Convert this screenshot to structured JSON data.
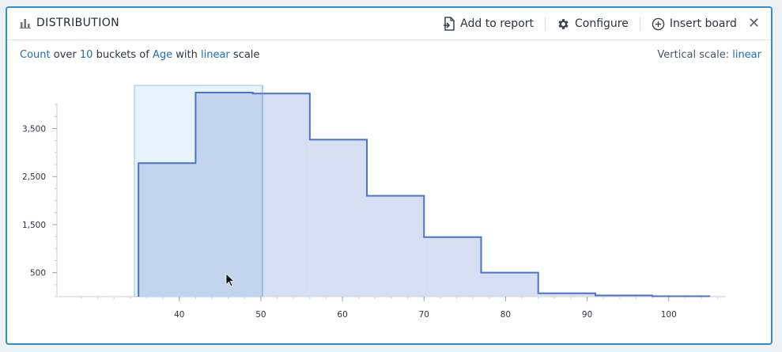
{
  "header": {
    "title": "DISTRIBUTION",
    "actions": [
      {
        "label": "Add to report",
        "icon": "add-to-report-icon"
      },
      {
        "label": "Configure",
        "icon": "gear-icon"
      },
      {
        "label": "Insert board",
        "icon": "plus-circle-icon"
      }
    ],
    "close_icon": "close-icon"
  },
  "summary": {
    "metric": "Count",
    "w_over": "over",
    "buckets": "10",
    "w_buckets_of": "buckets of",
    "field": "Age",
    "w_with": "with",
    "scale": "linear",
    "w_scale": "scale"
  },
  "vertical_scale": {
    "label": "Vertical scale:",
    "value": "linear"
  },
  "colors": {
    "accent": "#2e8fd0",
    "link": "#1b6fb8",
    "fill": "#d3dcf2",
    "fill_selected": "#c2d4ee",
    "line": "#4a72c8",
    "selection": "#e8f4fc"
  },
  "chart_data": {
    "type": "histogram",
    "bins": [
      {
        "x0": 35,
        "x1": 42,
        "y": 2780
      },
      {
        "x0": 42,
        "x1": 49,
        "y": 4250
      },
      {
        "x0": 49,
        "x1": 56,
        "y": 4230
      },
      {
        "x0": 56,
        "x1": 63,
        "y": 3270
      },
      {
        "x0": 63,
        "x1": 70,
        "y": 2100
      },
      {
        "x0": 70,
        "x1": 77,
        "y": 1240
      },
      {
        "x0": 77,
        "x1": 84,
        "y": 500
      },
      {
        "x0": 84,
        "x1": 91,
        "y": 70
      },
      {
        "x0": 91,
        "x1": 98,
        "y": 25
      },
      {
        "x0": 98,
        "x1": 105,
        "y": 8
      }
    ],
    "x_ticks": [
      40,
      50,
      60,
      70,
      80,
      90,
      100
    ],
    "y_ticks": [
      500,
      1500,
      2500,
      3500
    ],
    "y_tick_labels": [
      "500",
      "1,500",
      "2,500",
      "3,500"
    ],
    "xlim": [
      25,
      107
    ],
    "ylim": [
      0,
      4530
    ],
    "selection": [
      34.5,
      50.2
    ],
    "xlabel": "",
    "ylabel": ""
  }
}
